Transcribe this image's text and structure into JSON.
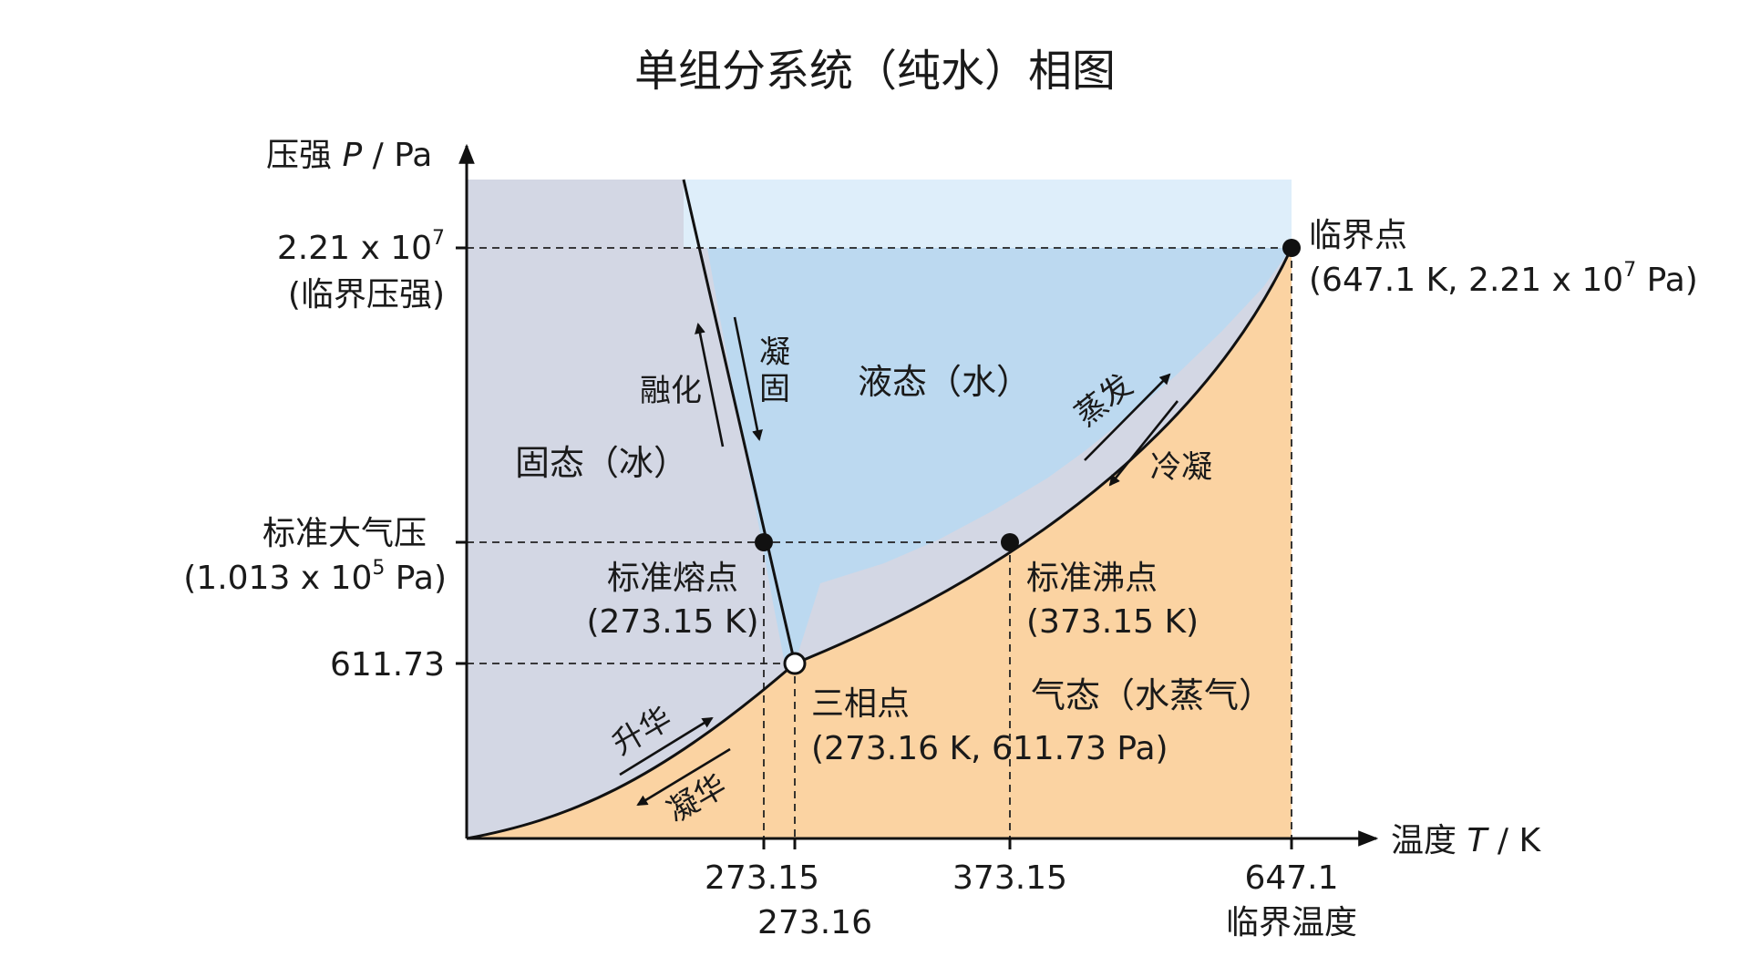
{
  "title": "单组分系统（纯水）相图",
  "axes": {
    "y_label_prefix": "压强 ",
    "y_label_var": "P",
    "y_label_unit": " / Pa",
    "x_label_prefix": "温度 ",
    "x_label_var": "T",
    "x_label_unit": " / K"
  },
  "y_ticks": {
    "critical_value_base": "2.21 x 10",
    "critical_value_exp": "7",
    "critical_note": "(临界压强)",
    "standard_label": "标准大气压",
    "standard_value_base": "(1.013 x 10",
    "standard_value_exp": "5",
    "standard_value_tail": " Pa)",
    "triple_value": "611.73"
  },
  "x_ticks": {
    "melting": "273.15",
    "triple": "273.16",
    "boiling": "373.15",
    "critical": "647.1",
    "critical_note": "临界温度"
  },
  "regions": {
    "solid": "固态（冰）",
    "liquid": "液态（水）",
    "gas": "气态（水蒸气）"
  },
  "transitions": {
    "melting": "融化",
    "freezing_1": "凝",
    "freezing_2": "固",
    "evaporation": "蒸发",
    "condensation": "冷凝",
    "sublimation": "升华",
    "deposition": "凝华"
  },
  "points": {
    "critical_name": "临界点",
    "critical_coords_base": "(647.1 K, 2.21 x 10",
    "critical_coords_exp": "7",
    "critical_coords_tail": " Pa)",
    "melting_name": "标准熔点",
    "melting_coords": "(273.15 K)",
    "boiling_name": "标准沸点",
    "boiling_coords": "(373.15 K)",
    "triple_name": "三相点",
    "triple_coords": "(273.16 K, 611.73 Pa)"
  },
  "colors": {
    "solid": "#d3d7e4",
    "liquid": "#bcd9f0",
    "liquid_upper": "#deeefa",
    "gas": "#fbd3a2"
  }
}
